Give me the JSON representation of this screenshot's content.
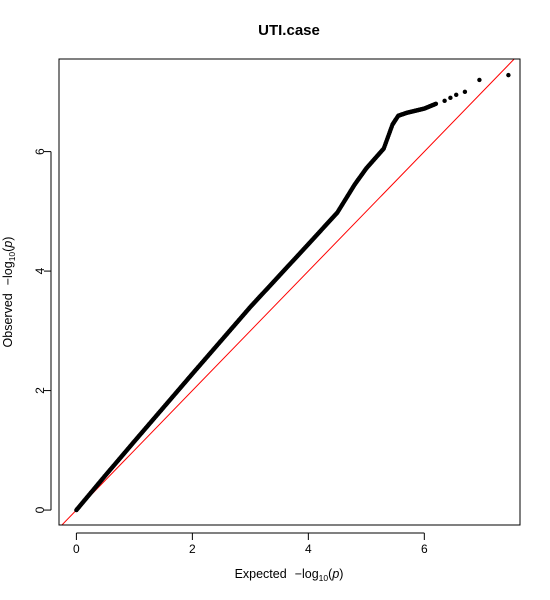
{
  "chart_data": {
    "type": "scatter",
    "title": "UTI.case",
    "xlabel": {
      "prefix": "Expected",
      "minus": "−log",
      "sub": "10",
      "paren_open": "(",
      "var": "p",
      "paren_close": ")"
    },
    "ylabel": {
      "prefix": "Observed",
      "minus": "−log",
      "sub": "10",
      "paren_open": "(",
      "var": "p",
      "paren_close": ")"
    },
    "xlim": [
      -0.3,
      7.65
    ],
    "ylim": [
      -0.25,
      7.55
    ],
    "xticks": [
      0,
      2,
      4,
      6
    ],
    "yticks": [
      0,
      2,
      4,
      6
    ],
    "xtick_labels": [
      "0",
      "2",
      "4",
      "6"
    ],
    "ytick_labels": [
      "0",
      "2",
      "4",
      "6"
    ],
    "grid": false,
    "reference_line": {
      "slope": 1,
      "intercept": 0,
      "color": "#ff0000"
    },
    "point_color": "#000000",
    "curve_knots": [
      [
        0.0,
        0.0
      ],
      [
        0.5,
        0.58
      ],
      [
        1.0,
        1.15
      ],
      [
        2.0,
        2.28
      ],
      [
        3.0,
        3.4
      ],
      [
        4.0,
        4.45
      ],
      [
        4.5,
        4.98
      ],
      [
        4.8,
        5.45
      ],
      [
        5.0,
        5.72
      ],
      [
        5.3,
        6.05
      ],
      [
        5.45,
        6.45
      ],
      [
        5.55,
        6.6
      ],
      [
        5.7,
        6.65
      ],
      [
        6.0,
        6.72
      ],
      [
        6.2,
        6.8
      ]
    ],
    "outlier_points": [
      [
        6.35,
        6.85
      ],
      [
        6.45,
        6.9
      ],
      [
        6.55,
        6.95
      ],
      [
        6.7,
        7.0
      ],
      [
        6.95,
        7.2
      ],
      [
        7.45,
        7.28
      ]
    ]
  }
}
